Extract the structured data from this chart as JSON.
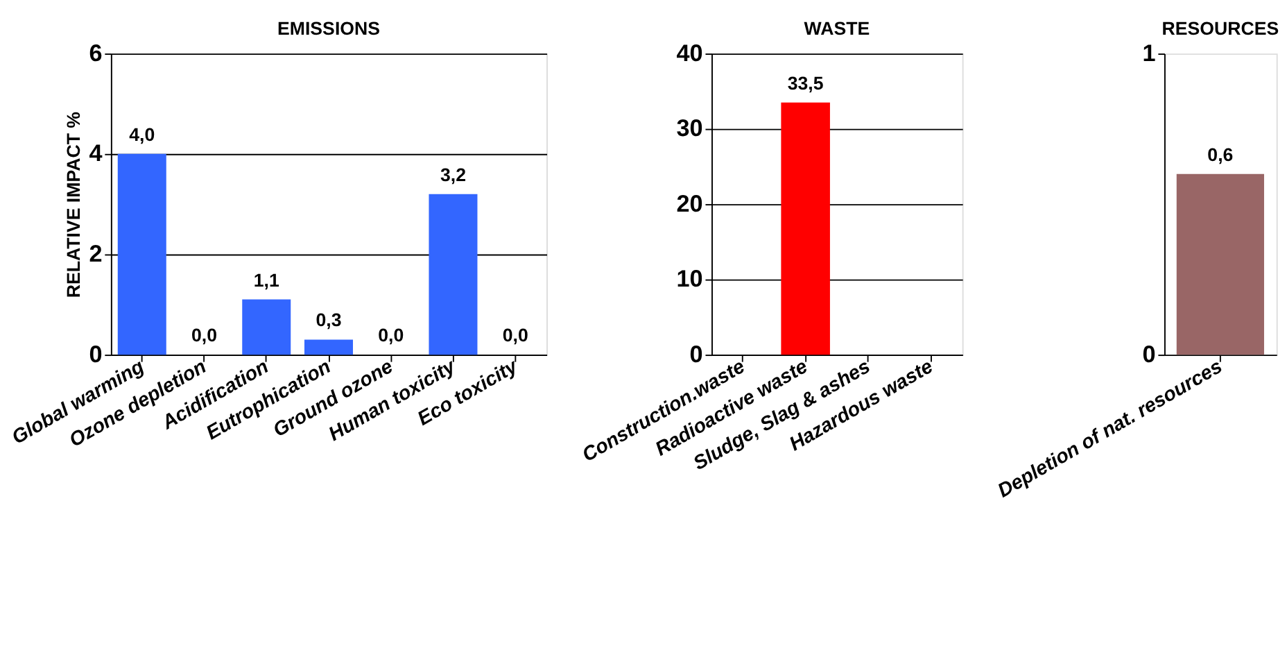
{
  "chart_data": [
    {
      "type": "bar",
      "title": "EMISSIONS",
      "ylabel": "RELATIVE IMPACT  %",
      "categories": [
        "Global warming",
        "Ozone depletion",
        "Acidification",
        "Eutrophication",
        "Ground ozone",
        "Human toxicity",
        "Eco toxicity"
      ],
      "values": [
        4.0,
        0.0,
        1.1,
        0.3,
        0.0,
        3.2,
        0.0
      ],
      "value_labels": [
        "4,0",
        "0,0",
        "1,1",
        "0,3",
        "0,0",
        "3,2",
        "0,0"
      ],
      "color": "#3366ff",
      "ylim": [
        0,
        6
      ],
      "yticks": [
        0,
        2,
        4,
        6
      ],
      "grid": "y"
    },
    {
      "type": "bar",
      "title": "WASTE",
      "categories": [
        "Construction.waste",
        "Radioactive waste",
        "Sludge, Slag & ashes",
        "Hazardous waste"
      ],
      "values": [
        null,
        33.5,
        null,
        null
      ],
      "value_labels": [
        null,
        "33,5",
        null,
        null
      ],
      "color": "#ff0000",
      "ylim": [
        0,
        40
      ],
      "yticks": [
        0,
        10,
        20,
        30,
        40
      ],
      "grid": "y"
    },
    {
      "type": "bar",
      "title": "RESOURCES",
      "categories": [
        "Depletion of nat. resources"
      ],
      "values": [
        0.6
      ],
      "value_labels": [
        "0,6"
      ],
      "color": "#996666",
      "ylim": [
        0,
        1
      ],
      "yticks": [
        0,
        1
      ]
    }
  ]
}
